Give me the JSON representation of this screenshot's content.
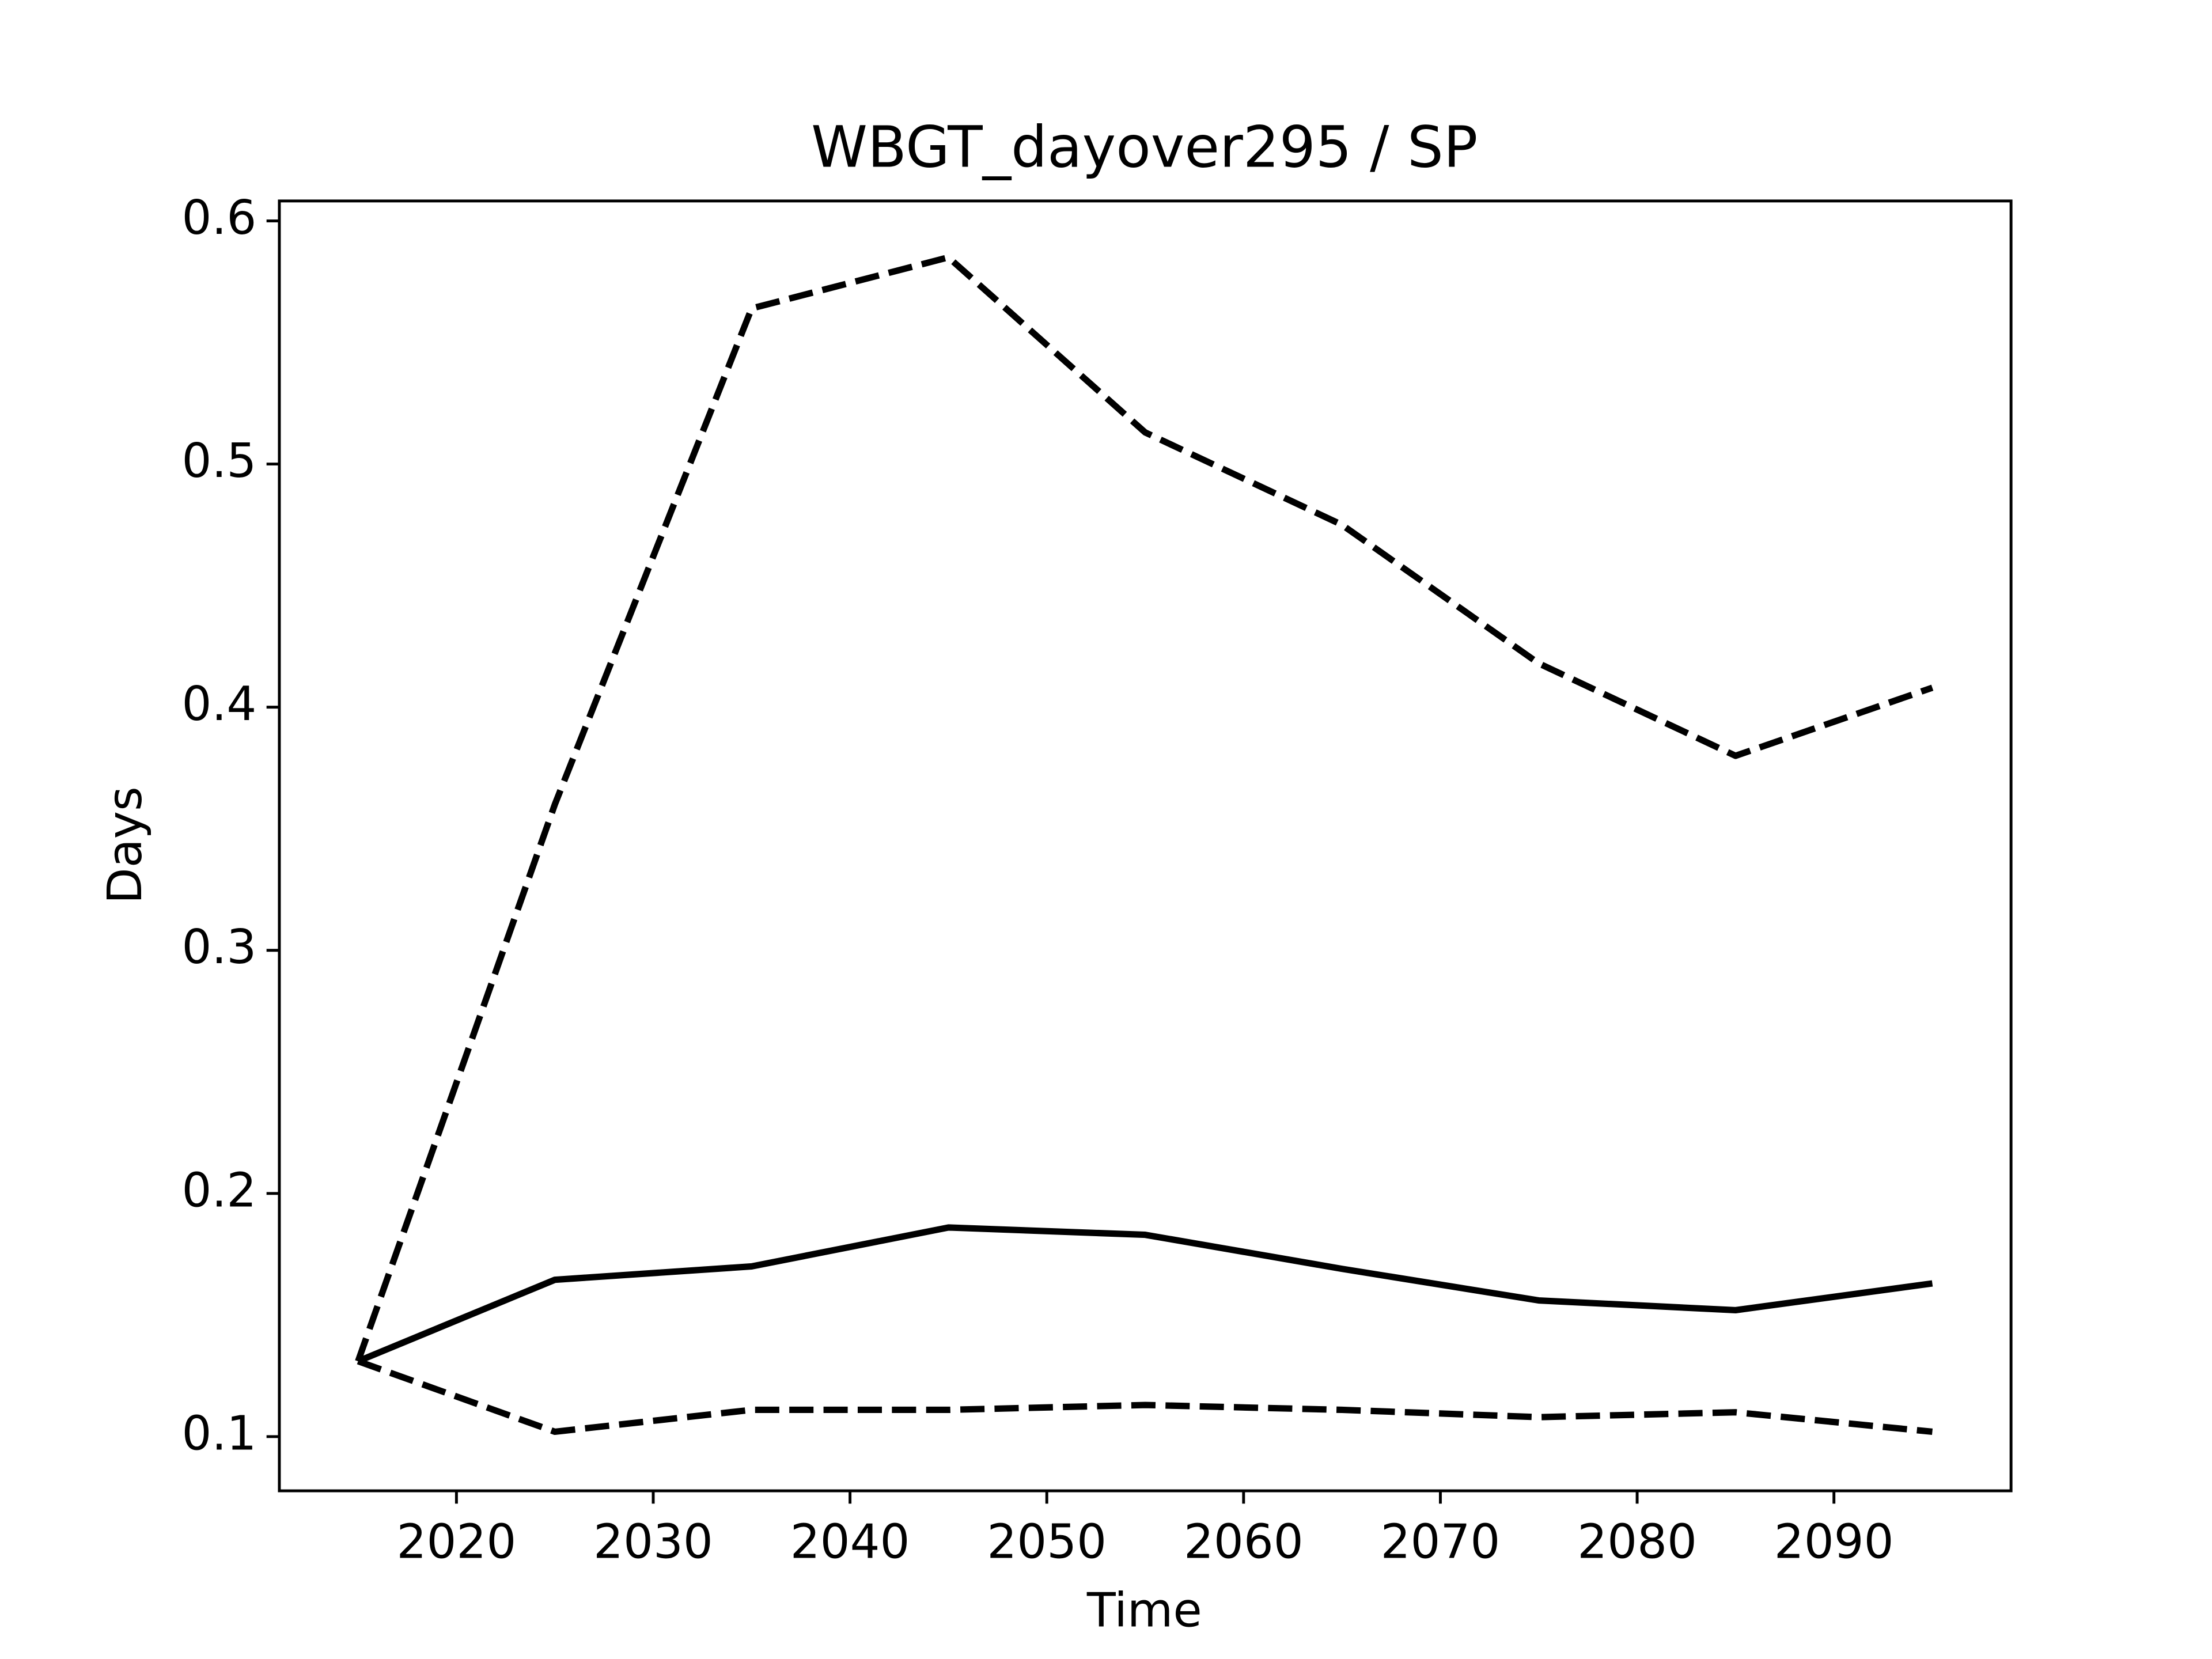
{
  "chart_data": {
    "type": "line",
    "title": "WBGT_dayover295 / SP",
    "xlabel": "Time",
    "ylabel": "Days",
    "x": [
      2015,
      2025,
      2035,
      2045,
      2055,
      2065,
      2075,
      2085,
      2095
    ],
    "series": [
      {
        "color": "#000000",
        "linestyle": "solid",
        "values": [
          0.131,
          0.1645,
          0.17,
          0.186,
          0.183,
          0.169,
          0.156,
          0.152,
          0.163
        ]
      },
      {
        "color": "#000000",
        "linestyle": "dashed",
        "values": [
          0.131,
          0.36,
          0.564,
          0.585,
          0.513,
          0.475,
          0.418,
          0.38,
          0.408
        ]
      },
      {
        "color": "#000000",
        "linestyle": "dashed",
        "values": [
          0.131,
          0.102,
          0.111,
          0.111,
          0.113,
          0.111,
          0.108,
          0.11,
          0.102
        ]
      }
    ],
    "xlim": [
      2011,
      2099
    ],
    "ylim": [
      0.0777,
      0.6082
    ],
    "xticks": [
      2020,
      2030,
      2040,
      2050,
      2060,
      2070,
      2080,
      2090
    ],
    "yticks": [
      0.1,
      0.2,
      0.3,
      0.4,
      0.5,
      0.6
    ],
    "grid": false
  }
}
